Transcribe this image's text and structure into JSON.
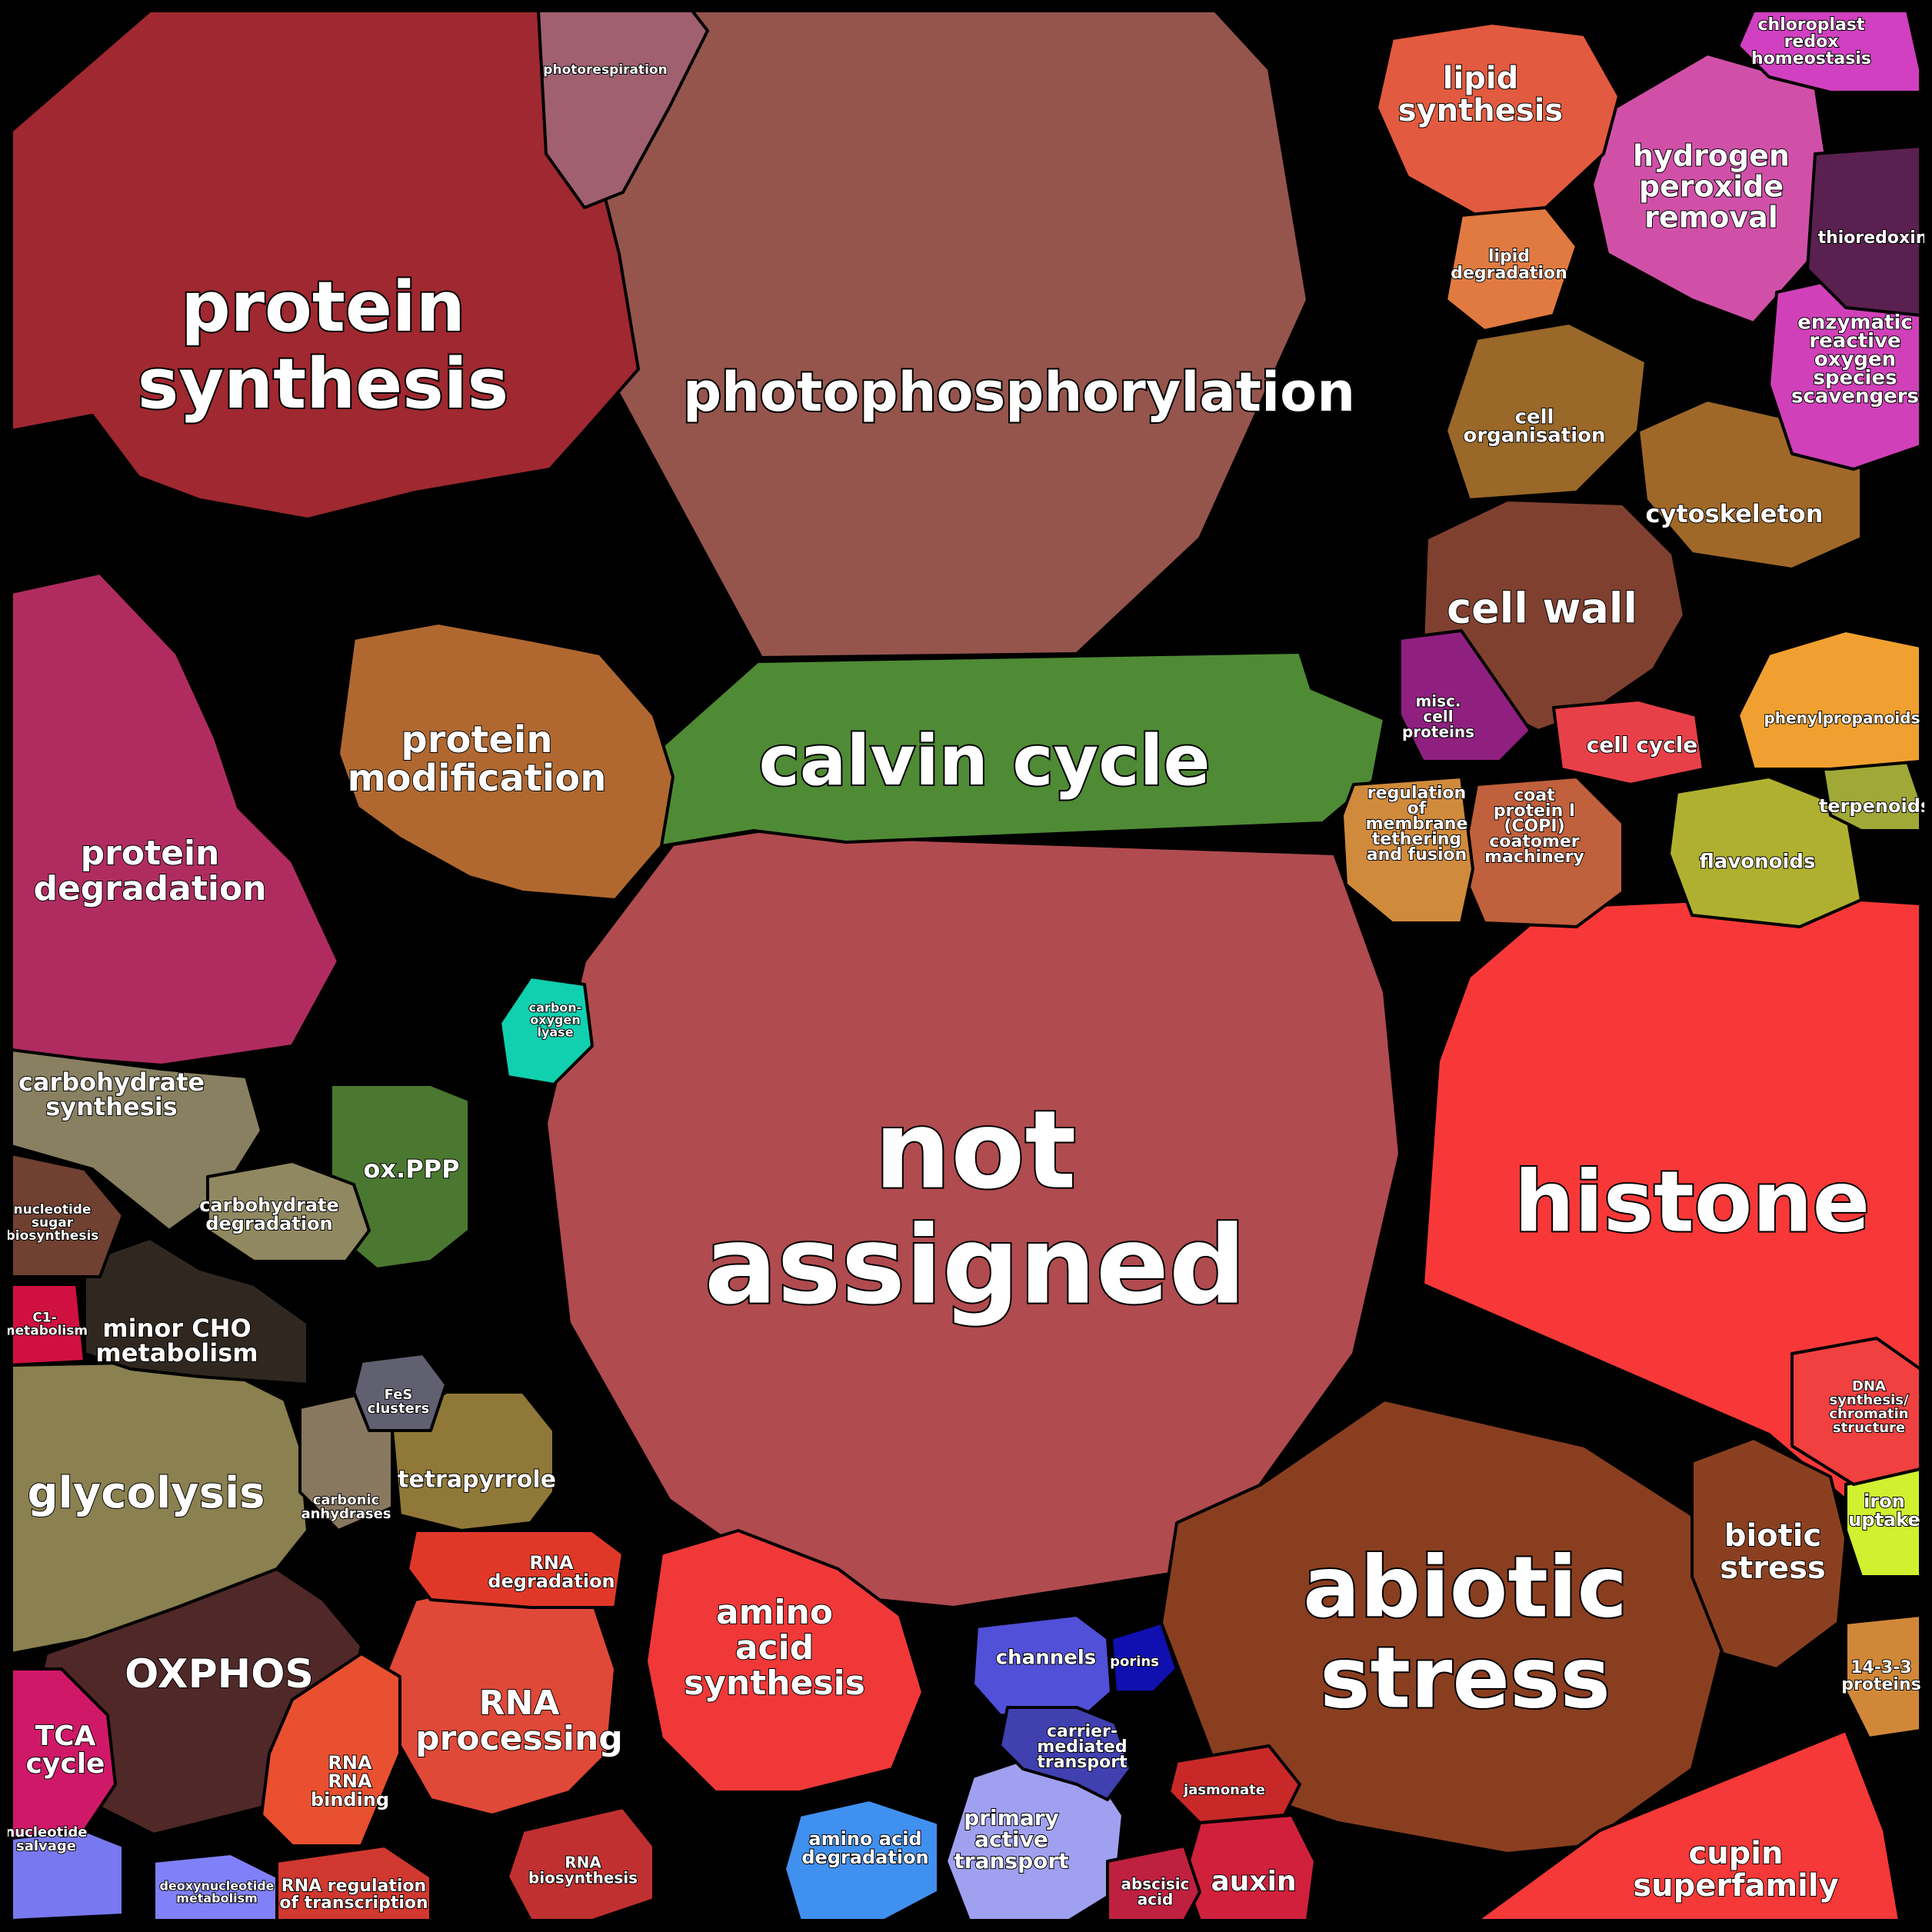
{
  "title": "",
  "cells": [
    {
      "key": "not_assigned",
      "label": "not assigned",
      "color": "#b04b4f"
    },
    {
      "key": "photophosphorylation",
      "label": "photophosphorylation",
      "color": "#95554c"
    },
    {
      "key": "protein_synthesis",
      "label": "protein synthesis",
      "color": "#a02830"
    },
    {
      "key": "calvin_cycle",
      "label": "calvin cycle",
      "color": "#4f8a35"
    },
    {
      "key": "histone",
      "label": "histone",
      "color": "#f83838"
    },
    {
      "key": "abiotic_stress",
      "label": "abiotic stress",
      "color": "#8a3e20"
    },
    {
      "key": "protein_degradation",
      "label": "protein degradation",
      "color": "#b02c60"
    },
    {
      "key": "protein_modification",
      "label": "protein modification",
      "color": "#b06830"
    },
    {
      "key": "glycolysis",
      "label": "glycolysis",
      "color": "#8a8050"
    },
    {
      "key": "oxphos",
      "label": "OXPHOS",
      "color": "#502828"
    },
    {
      "key": "rna_processing",
      "label": "RNA processing",
      "color": "#e04838"
    },
    {
      "key": "amino_acid_synthesis",
      "label": "amino acid synthesis",
      "color": "#f03838"
    },
    {
      "key": "cell_wall",
      "label": "cell wall",
      "color": "#804030"
    },
    {
      "key": "hydrogen_peroxide_removal",
      "label": "hydrogen peroxide removal",
      "color": "#d050a8"
    },
    {
      "key": "lipid_synthesis",
      "label": "lipid synthesis",
      "color": "#e25a3f"
    },
    {
      "key": "cupin_superfamily",
      "label": "cupin superfamily",
      "color": "#f53838"
    },
    {
      "key": "carbohydrate_synthesis",
      "label": "carbohydrate synthesis",
      "color": "#888060"
    },
    {
      "key": "minor_cho_metabolism",
      "label": "minor CHO metabolism",
      "color": "#302820"
    },
    {
      "key": "ox_ppp",
      "label": "ox.PPP",
      "color": "#4a7830"
    },
    {
      "key": "tetrapyrrole",
      "label": "tetrapyrrole",
      "color": "#907838"
    },
    {
      "key": "channels",
      "label": "channels",
      "color": "#5050d8"
    },
    {
      "key": "primary_active_transport",
      "label": "primary active transport",
      "color": "#a0a0f0"
    },
    {
      "key": "carrier_mediated_transport",
      "label": "carrier-mediated transport",
      "color": "#4040b0"
    },
    {
      "key": "auxin",
      "label": "auxin",
      "color": "#d0203c"
    },
    {
      "key": "biotic_stress",
      "label": "biotic stress",
      "color": "#8a4020"
    },
    {
      "key": "cytoskeleton",
      "label": "cytoskeleton",
      "color": "#a06828"
    },
    {
      "key": "cell_organisation",
      "label": "cell organisation",
      "color": "#9a6828"
    },
    {
      "key": "enzymatic_ros_scavengers",
      "label": "enzymatic reactive oxygen species scavengers",
      "color": "#d040b8"
    },
    {
      "key": "chloroplast_redox_homeostasis",
      "label": "chloroplast redox homeostasis",
      "color": "#d040c0"
    },
    {
      "key": "thioredoxin",
      "label": "thioredoxin",
      "color": "#5a2050"
    },
    {
      "key": "coat_protein_i",
      "label": "coat protein I (COPI) coatomer machinery",
      "color": "#c0603c"
    },
    {
      "key": "regulation_membrane_tethering",
      "label": "regulation of membrane tethering and fusion",
      "color": "#d08a3c"
    },
    {
      "key": "flavonoids",
      "label": "flavonoids",
      "color": "#b0b030"
    },
    {
      "key": "terpenoids",
      "label": "terpenoids",
      "color": "#a0a838"
    },
    {
      "key": "phenylpropanoids",
      "label": "phenylpropanoids",
      "color": "#f0a030"
    },
    {
      "key": "cell_cycle",
      "label": "cell cycle",
      "color": "#e84048"
    },
    {
      "key": "misc_cell_proteins",
      "label": "misc. cell proteins",
      "color": "#902080"
    },
    {
      "key": "rna_degradation",
      "label": "RNA degradation",
      "color": "#e03828"
    },
    {
      "key": "rna_binding",
      "label": "RNA RNA binding",
      "color": "#e85030"
    },
    {
      "key": "rna_regulation_transcription",
      "label": "RNA regulation of transcription",
      "color": "#d03830"
    },
    {
      "key": "rna_biosynthesis",
      "label": "RNA biosynthesis",
      "color": "#c03030"
    },
    {
      "key": "amino_acid_degradation",
      "label": "amino acid degradation",
      "color": "#4090f0"
    },
    {
      "key": "tca_cycle",
      "label": "TCA cycle",
      "color": "#d01868"
    },
    {
      "key": "nucleotide_salvage",
      "label": "nucleotide salvage",
      "color": "#7878f0"
    },
    {
      "key": "deoxynucleotide_metabolism",
      "label": "deoxynucleotide metabolism",
      "color": "#8080f8"
    },
    {
      "key": "carbohydrate_degradation",
      "label": "carbohydrate degradation",
      "color": "#908860"
    },
    {
      "key": "carbonic_anhydrases",
      "label": "carbonic anhydrases",
      "color": "#887860"
    },
    {
      "key": "iron_uptake",
      "label": "iron uptake",
      "color": "#d0f030"
    },
    {
      "key": "protein_14_3_3",
      "label": "14-3-3 proteins",
      "color": "#d08838"
    },
    {
      "key": "dna_synthesis",
      "label": "DNA synthesis/ chromatin structure",
      "color": "#f04040"
    },
    {
      "key": "jasmonate",
      "label": "jasmonate",
      "color": "#c82828"
    },
    {
      "key": "abscisic_acid",
      "label": "abscisic acid",
      "color": "#c02040"
    },
    {
      "key": "porins",
      "label": "porins",
      "color": "#1010b0"
    },
    {
      "key": "lipid_degradation",
      "label": "lipid degradation",
      "color": "#e07a40"
    },
    {
      "key": "photorespiration",
      "label": "photorespiration",
      "color": "#a06070"
    },
    {
      "key": "c1_metabolism",
      "label": "C1-metabolism",
      "color": "#d01040"
    },
    {
      "key": "nucleotide_sugar_biosynthesis",
      "label": "nucleotide sugar biosynthesis",
      "color": "#704030"
    },
    {
      "key": "fes_clusters",
      "label": "FeS clusters",
      "color": "#606070"
    },
    {
      "key": "carbon_oxygen_lyase",
      "label": "carbon-oxygen lyase",
      "color": "#10d0b0"
    }
  ],
  "labels": {
    "not_assigned": [
      "not",
      "assigned"
    ],
    "photophosphorylation": [
      "photophosphorylation"
    ],
    "protein_synthesis": [
      "protein",
      "synthesis"
    ],
    "calvin_cycle": [
      "calvin cycle"
    ],
    "histone": [
      "histone"
    ],
    "abiotic_stress": [
      "abiotic",
      "stress"
    ],
    "protein_degradation": [
      "protein",
      "degradation"
    ],
    "protein_modification": [
      "protein",
      "modification"
    ],
    "glycolysis": [
      "glycolysis"
    ],
    "oxphos": [
      "OXPHOS"
    ],
    "rna_processing": [
      "RNA",
      "processing"
    ],
    "amino_acid_synthesis": [
      "amino",
      "acid",
      "synthesis"
    ],
    "cell_wall": [
      "cell wall"
    ],
    "hydrogen_peroxide_removal": [
      "hydrogen",
      "peroxide",
      "removal"
    ],
    "lipid_synthesis": [
      "lipid",
      "synthesis"
    ],
    "cupin_superfamily": [
      "cupin",
      "superfamily"
    ],
    "carbohydrate_synthesis": [
      "carbohydrate",
      "synthesis"
    ],
    "minor_cho_metabolism": [
      "minor CHO",
      "metabolism"
    ],
    "ox_ppp": [
      "ox.PPP"
    ],
    "tetrapyrrole": [
      "tetrapyrrole"
    ],
    "channels": [
      "channels"
    ],
    "primary_active_transport": [
      "primary",
      "active",
      "transport"
    ],
    "carrier_mediated_transport": [
      "carrier-",
      "mediated",
      "transport"
    ],
    "auxin": [
      "auxin"
    ],
    "biotic_stress": [
      "biotic",
      "stress"
    ],
    "cytoskeleton": [
      "cytoskeleton"
    ],
    "cell_organisation": [
      "cell",
      "organisation"
    ],
    "enzymatic_ros_scavengers": [
      "enzymatic",
      "reactive",
      "oxygen",
      "species",
      "scavengers"
    ],
    "chloroplast_redox_homeostasis": [
      "chloroplast",
      "redox",
      "homeostasis"
    ],
    "thioredoxin": [
      "thioredoxin"
    ],
    "coat_protein_i": [
      "coat",
      "protein I",
      "(COPI)",
      "coatomer",
      "machinery"
    ],
    "regulation_membrane_tethering": [
      "regulation",
      "of",
      "membrane",
      "tethering",
      "and fusion"
    ],
    "flavonoids": [
      "flavonoids"
    ],
    "terpenoids": [
      "terpenoids"
    ],
    "phenylpropanoids": [
      "phenylpropanoids"
    ],
    "cell_cycle": [
      "cell cycle"
    ],
    "misc_cell_proteins": [
      "misc.",
      "cell",
      "proteins"
    ],
    "rna_degradation": [
      "RNA",
      "degradation"
    ],
    "rna_binding": [
      "RNA",
      "RNA",
      "binding"
    ],
    "rna_regulation_transcription": [
      "RNA regulation",
      "of transcription"
    ],
    "rna_biosynthesis": [
      "RNA",
      "biosynthesis"
    ],
    "amino_acid_degradation": [
      "amino acid",
      "degradation"
    ],
    "tca_cycle": [
      "TCA",
      "cycle"
    ],
    "nucleotide_salvage": [
      "nucleotide",
      "salvage"
    ],
    "deoxynucleotide_metabolism": [
      "deoxynucleotide",
      "metabolism"
    ],
    "carbohydrate_degradation": [
      "carbohydrate",
      "degradation"
    ],
    "carbonic_anhydrases": [
      "carbonic",
      "anhydrases"
    ],
    "iron_uptake": [
      "iron",
      "uptake"
    ],
    "protein_14_3_3": [
      "14-3-3",
      "proteins"
    ],
    "dna_synthesis": [
      "DNA",
      "synthesis/",
      "chromatin",
      "structure"
    ],
    "jasmonate": [
      "jasmonate"
    ],
    "abscisic_acid": [
      "abscisic",
      "acid"
    ],
    "porins": [
      "porins"
    ],
    "lipid_degradation": [
      "lipid",
      "degradation"
    ],
    "photorespiration": [
      "photorespiration"
    ],
    "c1_metabolism": [
      "C1-",
      "metabolism"
    ],
    "nucleotide_sugar_biosynthesis": [
      "nucleotide",
      "sugar",
      "biosynthesis"
    ],
    "fes_clusters": [
      "FeS",
      "clusters"
    ],
    "carbon_oxygen_lyase": [
      "carbon-",
      "oxygen",
      "lyase"
    ]
  }
}
